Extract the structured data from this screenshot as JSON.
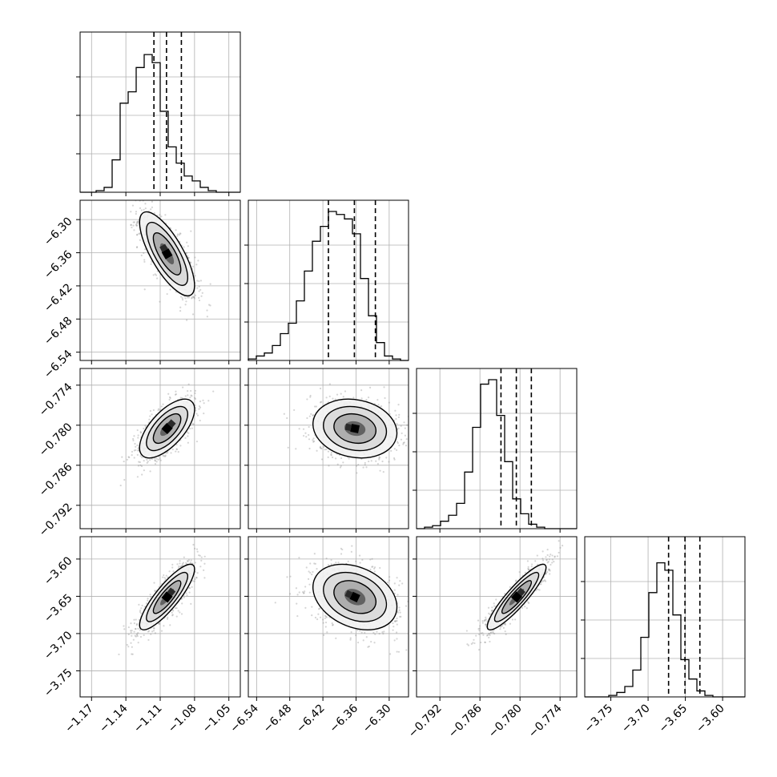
{
  "chart_data": {
    "type": "corner",
    "title": "",
    "parameters": [
      {
        "name": "",
        "range": [
          -1.18,
          -1.04
        ],
        "ticks": [
          "−1.17",
          "−1.14",
          "−1.11",
          "−1.08",
          "−1.05"
        ],
        "tick_values": [
          -1.17,
          -1.14,
          -1.11,
          -1.08,
          -1.05
        ],
        "quantiles": [
          -1.1155,
          -1.1045,
          -1.0915
        ],
        "hist_counts": [
          0,
          0,
          1,
          3,
          20,
          55,
          62,
          77,
          85,
          80,
          50,
          28,
          18,
          10,
          7,
          3,
          1,
          0,
          0,
          0
        ],
        "hist_max": 92
      },
      {
        "name": "",
        "range": [
          -6.555,
          -6.265
        ],
        "ticks": [
          "−6.54",
          "−6.48",
          "−6.42",
          "−6.36",
          "−6.30"
        ],
        "tick_values": [
          -6.54,
          -6.48,
          -6.42,
          -6.36,
          -6.3
        ],
        "quantiles": [
          -6.41,
          -6.363,
          -6.325
        ],
        "hist_counts": [
          1,
          3,
          5,
          10,
          18,
          25,
          40,
          60,
          80,
          90,
          100,
          98,
          95,
          85,
          55,
          30,
          12,
          3,
          1,
          0
        ],
        "hist_max": 100
      },
      {
        "name": "",
        "range": [
          -0.7955,
          -0.7715
        ],
        "ticks": [
          "−0.792",
          "−0.786",
          "−0.780",
          "−0.774"
        ],
        "tick_values": [
          -0.792,
          -0.786,
          -0.78,
          -0.774
        ],
        "quantiles": [
          -0.78285,
          -0.78055,
          -0.7783
        ],
        "hist_counts": [
          0,
          1,
          2,
          5,
          9,
          17,
          38,
          68,
          97,
          100,
          76,
          45,
          20,
          10,
          3,
          1,
          0,
          0,
          0,
          0
        ],
        "hist_max": 100
      },
      {
        "name": "",
        "range": [
          -3.785,
          -3.57
        ],
        "ticks": [
          "−3.75",
          "−3.70",
          "−3.65",
          "−3.60"
        ],
        "tick_values": [
          -3.75,
          -3.7,
          -3.65,
          -3.6
        ],
        "quantiles": [
          -3.6725,
          -3.6505,
          -3.6305
        ],
        "hist_counts": [
          0,
          0,
          0,
          1,
          3,
          7,
          18,
          40,
          70,
          90,
          85,
          55,
          25,
          12,
          4,
          1,
          0,
          0,
          0,
          0
        ],
        "hist_max": 100
      }
    ],
    "pairs": [
      {
        "x": 0,
        "y": 1,
        "center": [
          -1.104,
          -6.362
        ],
        "sigma": [
          0.012,
          0.038
        ],
        "rho": -0.75
      },
      {
        "x": 0,
        "y": 2,
        "center": [
          -1.104,
          -0.7805
        ],
        "sigma": [
          0.012,
          0.0022
        ],
        "rho": 0.65
      },
      {
        "x": 1,
        "y": 2,
        "center": [
          -6.362,
          -0.7805
        ],
        "sigma": [
          0.038,
          0.0022
        ],
        "rho": -0.15
      },
      {
        "x": 0,
        "y": 3,
        "center": [
          -1.104,
          -3.651
        ],
        "sigma": [
          0.012,
          0.022
        ],
        "rho": 0.85
      },
      {
        "x": 1,
        "y": 3,
        "center": [
          -6.362,
          -3.651
        ],
        "sigma": [
          0.038,
          0.022
        ],
        "rho": -0.3
      },
      {
        "x": 2,
        "y": 3,
        "center": [
          -0.7805,
          -3.651
        ],
        "sigma": [
          0.0022,
          0.022
        ],
        "rho": 0.9
      }
    ],
    "contour_levels_sigma": [
      0.5,
      1.0,
      1.5,
      2.0
    ],
    "grid": true,
    "colors": {
      "points": "#888888",
      "hist_line": "#000000",
      "density_dark": "#000000",
      "background": "#ffffff"
    }
  }
}
